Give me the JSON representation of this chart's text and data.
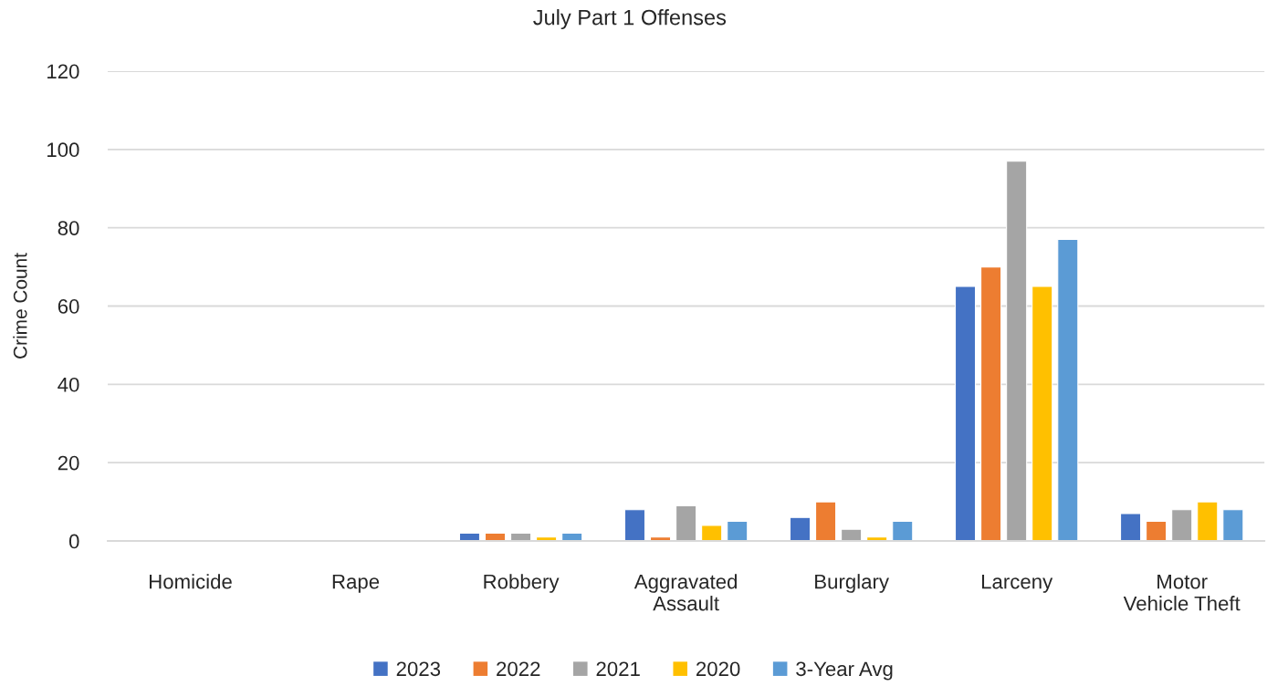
{
  "chart_data": {
    "type": "bar",
    "title": "July Part 1 Offenses",
    "ylabel": "Crime Count",
    "categories": [
      "Homicide",
      "Rape",
      "Robbery",
      "Aggravated\nAssault",
      "Burglary",
      "Larceny",
      "Motor\nVehicle Theft"
    ],
    "series": [
      {
        "name": "2023",
        "color": "#4472c4",
        "values": [
          0,
          0,
          2,
          8,
          6,
          65,
          7
        ]
      },
      {
        "name": "2022",
        "color": "#ed7d31",
        "values": [
          0,
          0,
          2,
          1,
          10,
          70,
          5
        ]
      },
      {
        "name": "2021",
        "color": "#a5a5a5",
        "values": [
          0,
          0,
          2,
          9,
          3,
          97,
          8
        ]
      },
      {
        "name": "2020",
        "color": "#ffc000",
        "values": [
          0,
          0,
          1,
          4,
          1,
          65,
          10
        ]
      },
      {
        "name": "3-Year Avg",
        "color": "#5b9bd5",
        "values": [
          0,
          0,
          2,
          5,
          5,
          77,
          8
        ]
      }
    ],
    "ylim": [
      0,
      120
    ],
    "yticks": [
      0,
      20,
      40,
      60,
      80,
      100,
      120
    ],
    "grid": "y",
    "legend": "bottom"
  }
}
